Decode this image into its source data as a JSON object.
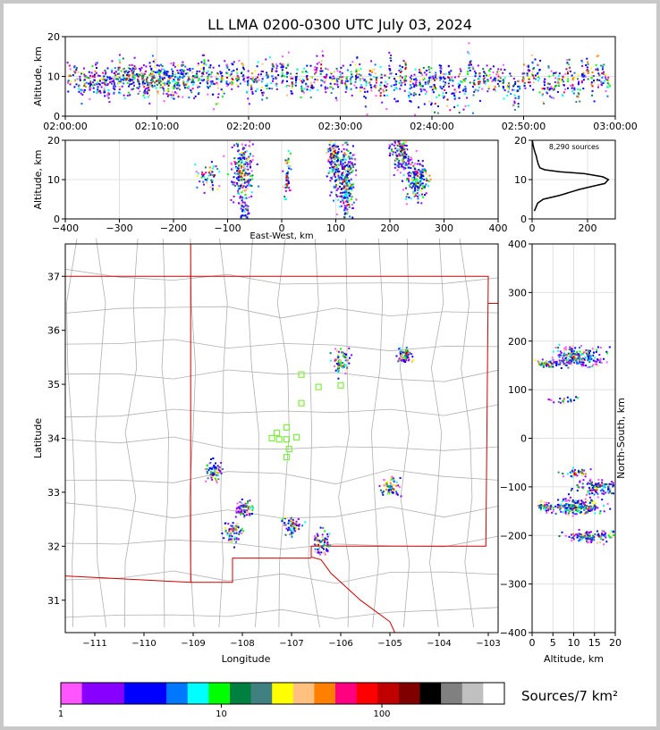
{
  "title": "LL LMA 0200-0300 UTC July 03, 2024",
  "colorbar_label": "Sources/7 km²",
  "colors": {
    "colorbar": [
      "#ff55ff",
      "#8800ff",
      "#8800ff",
      "#0000ff",
      "#0000ff",
      "#0077ff",
      "#00ffff",
      "#00ff00",
      "#008040",
      "#408080",
      "#ffff00",
      "#ffc080",
      "#ff8000",
      "#ff0080",
      "#ff0000",
      "#c00000",
      "#800000",
      "#000000",
      "#808080",
      "#c0c0c0",
      "#ffffff"
    ],
    "state_border": "#d00000",
    "county_lines": "#b0b0b0",
    "station_marker": "#80ee40"
  },
  "chart_data": [
    {
      "id": "altitude-vs-time",
      "type": "heatmap",
      "ylabel": "Altitude, km",
      "xlim": [
        "02:00:00",
        "03:00:00"
      ],
      "ylim": [
        0,
        20
      ],
      "x_ticks": [
        "02:00:00",
        "02:10:00",
        "02:20:00",
        "02:30:00",
        "02:40:00",
        "02:50:00",
        "03:00:00"
      ],
      "y_ticks": [
        "0",
        "10",
        "20"
      ],
      "grid": true
    },
    {
      "id": "altitude-vs-east-west",
      "type": "heatmap",
      "xlabel": "East-West, km",
      "ylabel": "Altitude, km",
      "xlim": [
        -400,
        400
      ],
      "ylim": [
        0,
        20
      ],
      "x_ticks": [
        "−400",
        "−300",
        "−200",
        "−100",
        "0",
        "100",
        "200",
        "300",
        "400"
      ],
      "y_ticks": [
        "0",
        "10",
        "20"
      ],
      "grid": true
    },
    {
      "id": "altitude-histogram",
      "type": "line",
      "annotation": "8,290 sources",
      "xlim": [
        0,
        300
      ],
      "ylim": [
        0,
        20
      ],
      "x_ticks": [
        "0",
        "200"
      ],
      "y_ticks": [
        "0",
        "10",
        "20"
      ],
      "x": [
        8,
        20,
        40,
        100,
        170,
        230,
        262,
        275,
        255,
        190,
        100,
        45,
        28,
        22,
        18,
        15,
        10,
        6,
        3,
        1
      ],
      "y": [
        2,
        4,
        5,
        6,
        7.5,
        8.5,
        9,
        10,
        10.7,
        11.5,
        12,
        12.5,
        13,
        14,
        15,
        16,
        17,
        18,
        19,
        20
      ]
    },
    {
      "id": "plan-view-map",
      "type": "heatmap",
      "xlabel": "Longitude",
      "ylabel": "Latitude",
      "xlim": [
        -111.6,
        -102.8
      ],
      "ylim": [
        30.4,
        37.6
      ],
      "x_ticks": [
        "−111",
        "−110",
        "−109",
        "−108",
        "−107",
        "−106",
        "−105",
        "−104",
        "−103"
      ],
      "y_ticks": [
        "31",
        "32",
        "33",
        "34",
        "35",
        "36",
        "37"
      ],
      "grid": false,
      "source_clusters": [
        {
          "lon": -107.95,
          "lat": 32.7
        },
        {
          "lon": -108.2,
          "lat": 32.3
        },
        {
          "lon": -106.0,
          "lat": 35.45
        },
        {
          "lon": -104.7,
          "lat": 35.55
        },
        {
          "lon": -105.0,
          "lat": 33.1
        },
        {
          "lon": -106.4,
          "lat": 32.05
        },
        {
          "lon": -107.0,
          "lat": 32.4
        },
        {
          "lon": -108.6,
          "lat": 33.4
        }
      ],
      "stations": [
        {
          "lon": -106.8,
          "lat": 35.18
        },
        {
          "lon": -106.45,
          "lat": 34.95
        },
        {
          "lon": -106.0,
          "lat": 34.98
        },
        {
          "lon": -106.8,
          "lat": 34.65
        },
        {
          "lon": -107.3,
          "lat": 34.1
        },
        {
          "lon": -107.1,
          "lat": 34.2
        },
        {
          "lon": -107.4,
          "lat": 34.0
        },
        {
          "lon": -107.25,
          "lat": 33.98
        },
        {
          "lon": -107.1,
          "lat": 33.98
        },
        {
          "lon": -106.9,
          "lat": 34.02
        },
        {
          "lon": -107.05,
          "lat": 33.8
        },
        {
          "lon": -107.1,
          "lat": 33.65
        }
      ]
    },
    {
      "id": "north-south-vs-altitude",
      "type": "heatmap",
      "xlabel": "Altitude, km",
      "ylabel": "North-South, km",
      "xlim": [
        0,
        20
      ],
      "ylim": [
        -400,
        400
      ],
      "x_ticks": [
        "0",
        "5",
        "10",
        "15",
        "20"
      ],
      "y_ticks": [
        "−400",
        "−300",
        "−200",
        "−100",
        "0",
        "100",
        "200",
        "300",
        "400"
      ],
      "grid": true
    },
    {
      "id": "colorbar",
      "type": "bar",
      "tick_labels": [
        "1",
        "10",
        "100"
      ]
    }
  ]
}
